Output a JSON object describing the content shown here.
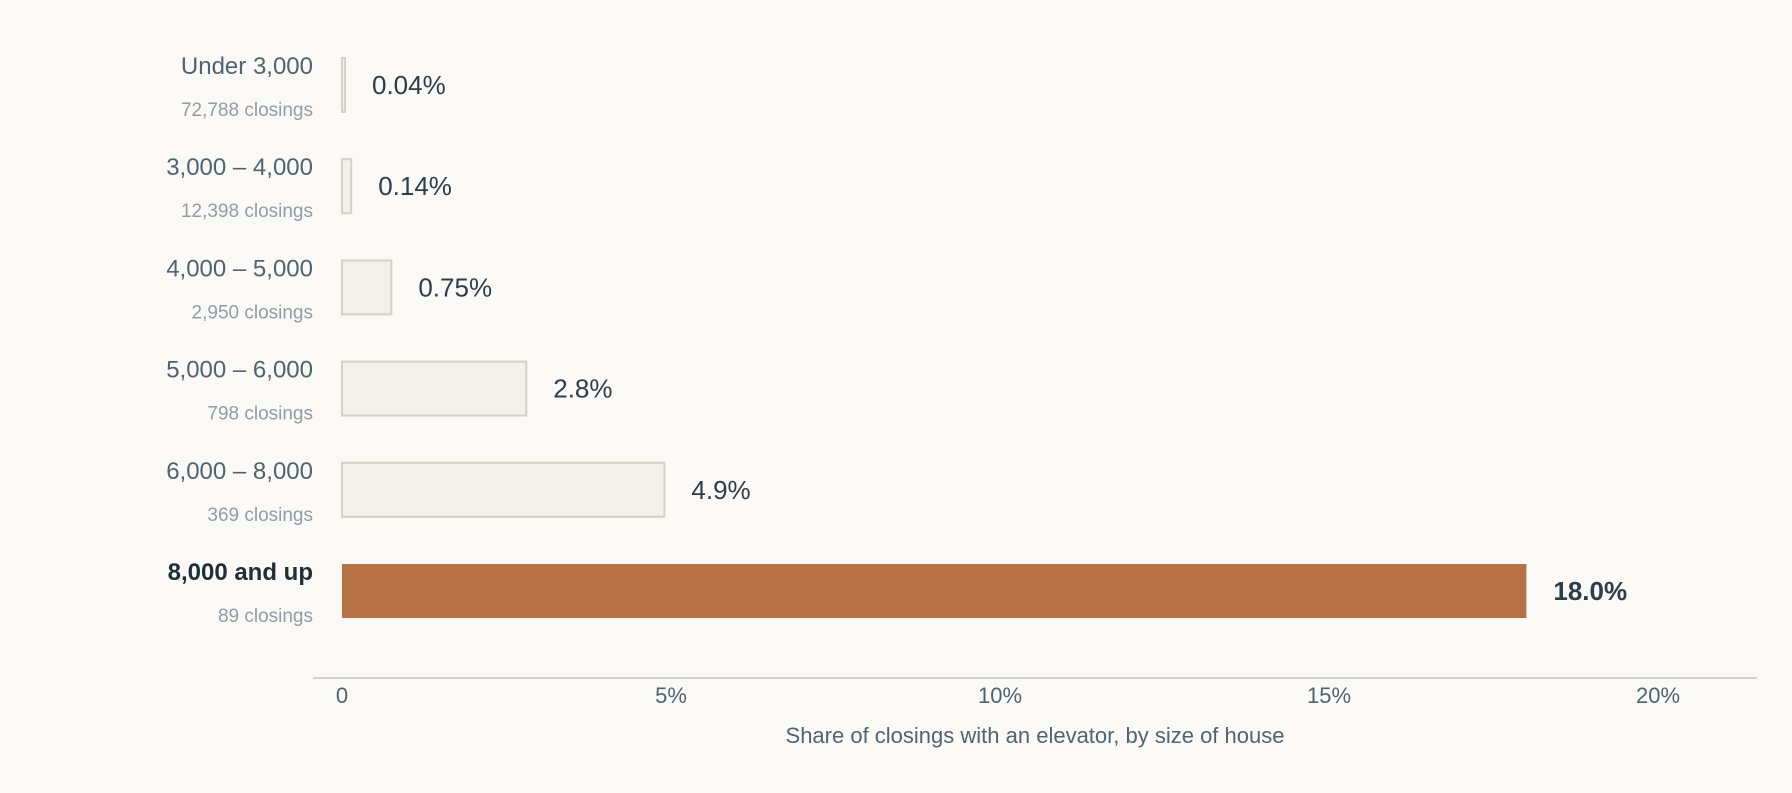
{
  "chart_data": {
    "type": "bar",
    "orientation": "horizontal",
    "xlabel": "Share of closings with an elevator, by size of house",
    "xlim": [
      0,
      20
    ],
    "xticks": [
      0,
      5,
      10,
      15,
      20
    ],
    "xtick_labels": [
      "0",
      "5%",
      "10%",
      "15%",
      "20%"
    ],
    "grid": false,
    "categories": [
      {
        "label": "Under 3,000",
        "sublabel": "72,788 closings",
        "value": 0.04,
        "value_label": "0.04%",
        "highlight": false
      },
      {
        "label": "3,000 – 4,000",
        "sublabel": "12,398 closings",
        "value": 0.14,
        "value_label": "0.14%",
        "highlight": false
      },
      {
        "label": "4,000 – 5,000",
        "sublabel": "2,950 closings",
        "value": 0.75,
        "value_label": "0.75%",
        "highlight": false
      },
      {
        "label": "5,000 – 6,000",
        "sublabel": "798 closings",
        "value": 2.8,
        "value_label": "2.8%",
        "highlight": false
      },
      {
        "label": "6,000 – 8,000",
        "sublabel": "369 closings",
        "value": 4.9,
        "value_label": "4.9%",
        "highlight": false
      },
      {
        "label": "8,000 and up",
        "sublabel": "89 closings",
        "value": 18.0,
        "value_label": "18.0%",
        "highlight": true
      }
    ],
    "colors": {
      "bar_fill": "#f3efe9",
      "bar_stroke": "#d6d0c7",
      "highlight": "#b87147",
      "axis": "#cfd3d4"
    }
  }
}
